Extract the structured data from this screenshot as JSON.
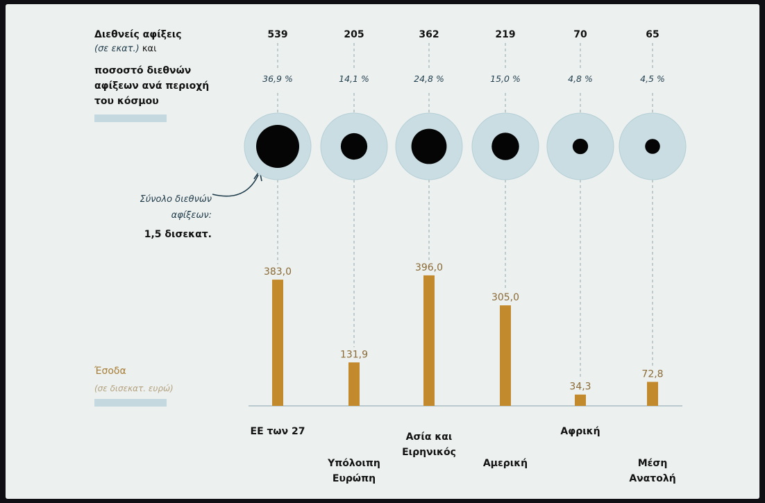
{
  "arrivals_heading": {
    "line1": "Διεθνείς αφίξεις",
    "line2_ital": "(σε εκατ.)",
    "line2_rest": " και",
    "line3": "ποσοστό διεθνών",
    "line4": "αφίξεων ανά περιοχή",
    "line5": "του κόσμου"
  },
  "total_annotation": {
    "line1": "Σύνολο διεθνών",
    "line2": "αφίξεων:",
    "line3": "1,5 δισεκατ."
  },
  "revenue_heading": {
    "line1": "Έσοδα",
    "line2": "(σε δισεκατ. ευρώ)"
  },
  "colors": {
    "background": "#ecf0ef",
    "halo": "#c9dde2",
    "dot": "#050505",
    "bar": "#c28a2c",
    "legend_swatch": "#c3d8df",
    "guide": "#8ea4ad"
  },
  "chart_data": {
    "type": "bar",
    "categories": [
      "ΕΕ των 27",
      "Υπόλοιπη Ευρώπη",
      "Ασία και Ειρηνικός",
      "Αμερική",
      "Αφρική",
      "Μέση Ανατολή"
    ],
    "category_lines": [
      [
        "ΕΕ των 27"
      ],
      [
        "Υπόλοιπη",
        "Ευρώπη"
      ],
      [
        "Ασία και",
        "Ειρηνικός"
      ],
      [
        "Αμερική"
      ],
      [
        "Αφρική"
      ],
      [
        "Μέση",
        "Ανατολή"
      ]
    ],
    "arrivals": [
      539,
      205,
      362,
      219,
      70,
      65
    ],
    "arrivals_labels": [
      "539",
      "205",
      "362",
      "219",
      "70",
      "65"
    ],
    "share_labels": [
      "36,9 %",
      "14,1 %",
      "24,8 %",
      "15,0 %",
      "4,8 %",
      "4,5 %"
    ],
    "revenue": [
      383.0,
      131.9,
      396.0,
      305.0,
      34.3,
      72.8
    ],
    "revenue_labels": [
      "383,0",
      "131,9",
      "396,0",
      "305,0",
      "34,3",
      "72,8"
    ]
  }
}
